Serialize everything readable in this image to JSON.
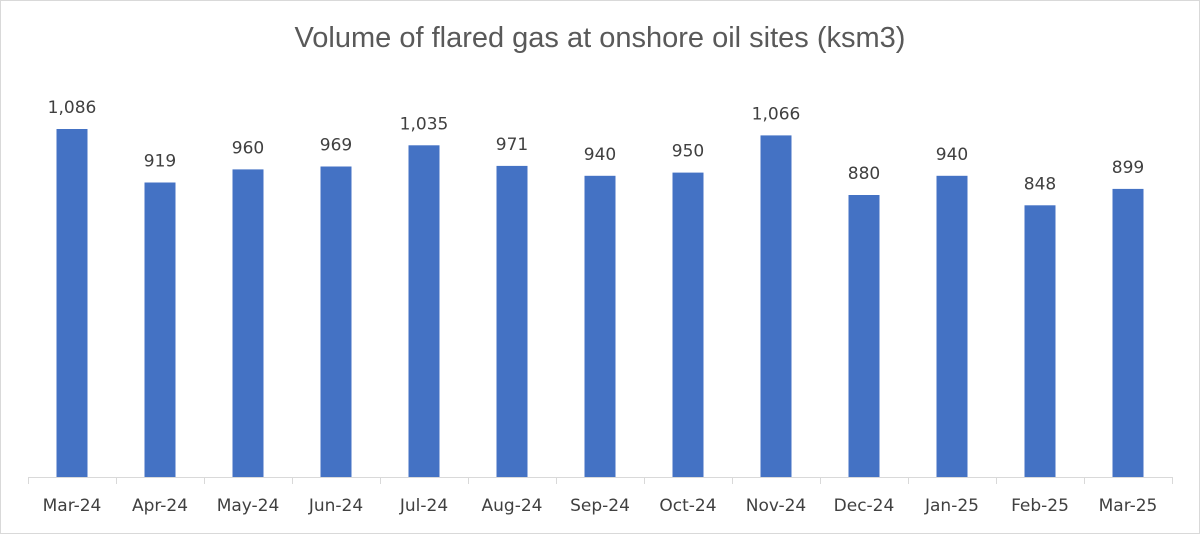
{
  "chart_data": {
    "type": "bar",
    "title": "Volume of flared gas at onshore oil sites (ksm3)",
    "categories": [
      "Mar-24",
      "Apr-24",
      "May-24",
      "Jun-24",
      "Jul-24",
      "Aug-24",
      "Sep-24",
      "Oct-24",
      "Nov-24",
      "Dec-24",
      "Jan-25",
      "Feb-25",
      "Mar-25"
    ],
    "values": [
      1086,
      919,
      960,
      969,
      1035,
      971,
      940,
      950,
      1066,
      880,
      940,
      848,
      899
    ],
    "data_labels": [
      "1,086",
      "919",
      "960",
      "969",
      "1,035",
      "971",
      "940",
      "950",
      "1,066",
      "880",
      "940",
      "848",
      "899"
    ],
    "ylim": [
      0,
      1086
    ],
    "xlabel": "",
    "ylabel": "",
    "grid": false,
    "legend": "none",
    "bar_color": "#4472c4",
    "axis_color": "#d9d9d9"
  }
}
